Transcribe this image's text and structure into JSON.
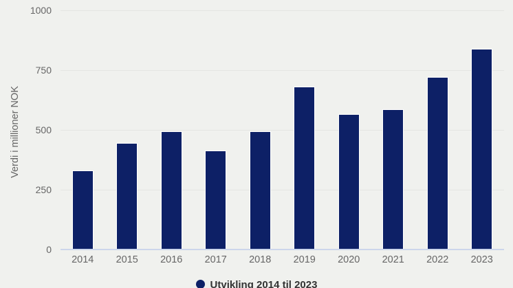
{
  "chart_data": {
    "type": "bar",
    "title": "",
    "categories": [
      "2014",
      "2015",
      "2016",
      "2017",
      "2018",
      "2019",
      "2020",
      "2021",
      "2022",
      "2023"
    ],
    "values": [
      330,
      445,
      495,
      415,
      495,
      680,
      565,
      585,
      720,
      840
    ],
    "series_name": "Utvikling 2014 til 2023",
    "xlabel": "",
    "ylabel": "Verdi i millioner NOK",
    "ylim": [
      0,
      1000
    ],
    "yticks": [
      0,
      250,
      500,
      750,
      1000
    ],
    "grid": true,
    "legend_position": "bottom-center",
    "legend_label": "Utvikling 2014 til 2023"
  },
  "colors": {
    "bar_fill": "#0d2066",
    "bar_border": "#ffffff",
    "background": "#f0f1ee",
    "gridline": "#e4e5e2",
    "axis_line": "#ccd6eb",
    "axis_text": "#666666",
    "legend_text": "#333333"
  }
}
